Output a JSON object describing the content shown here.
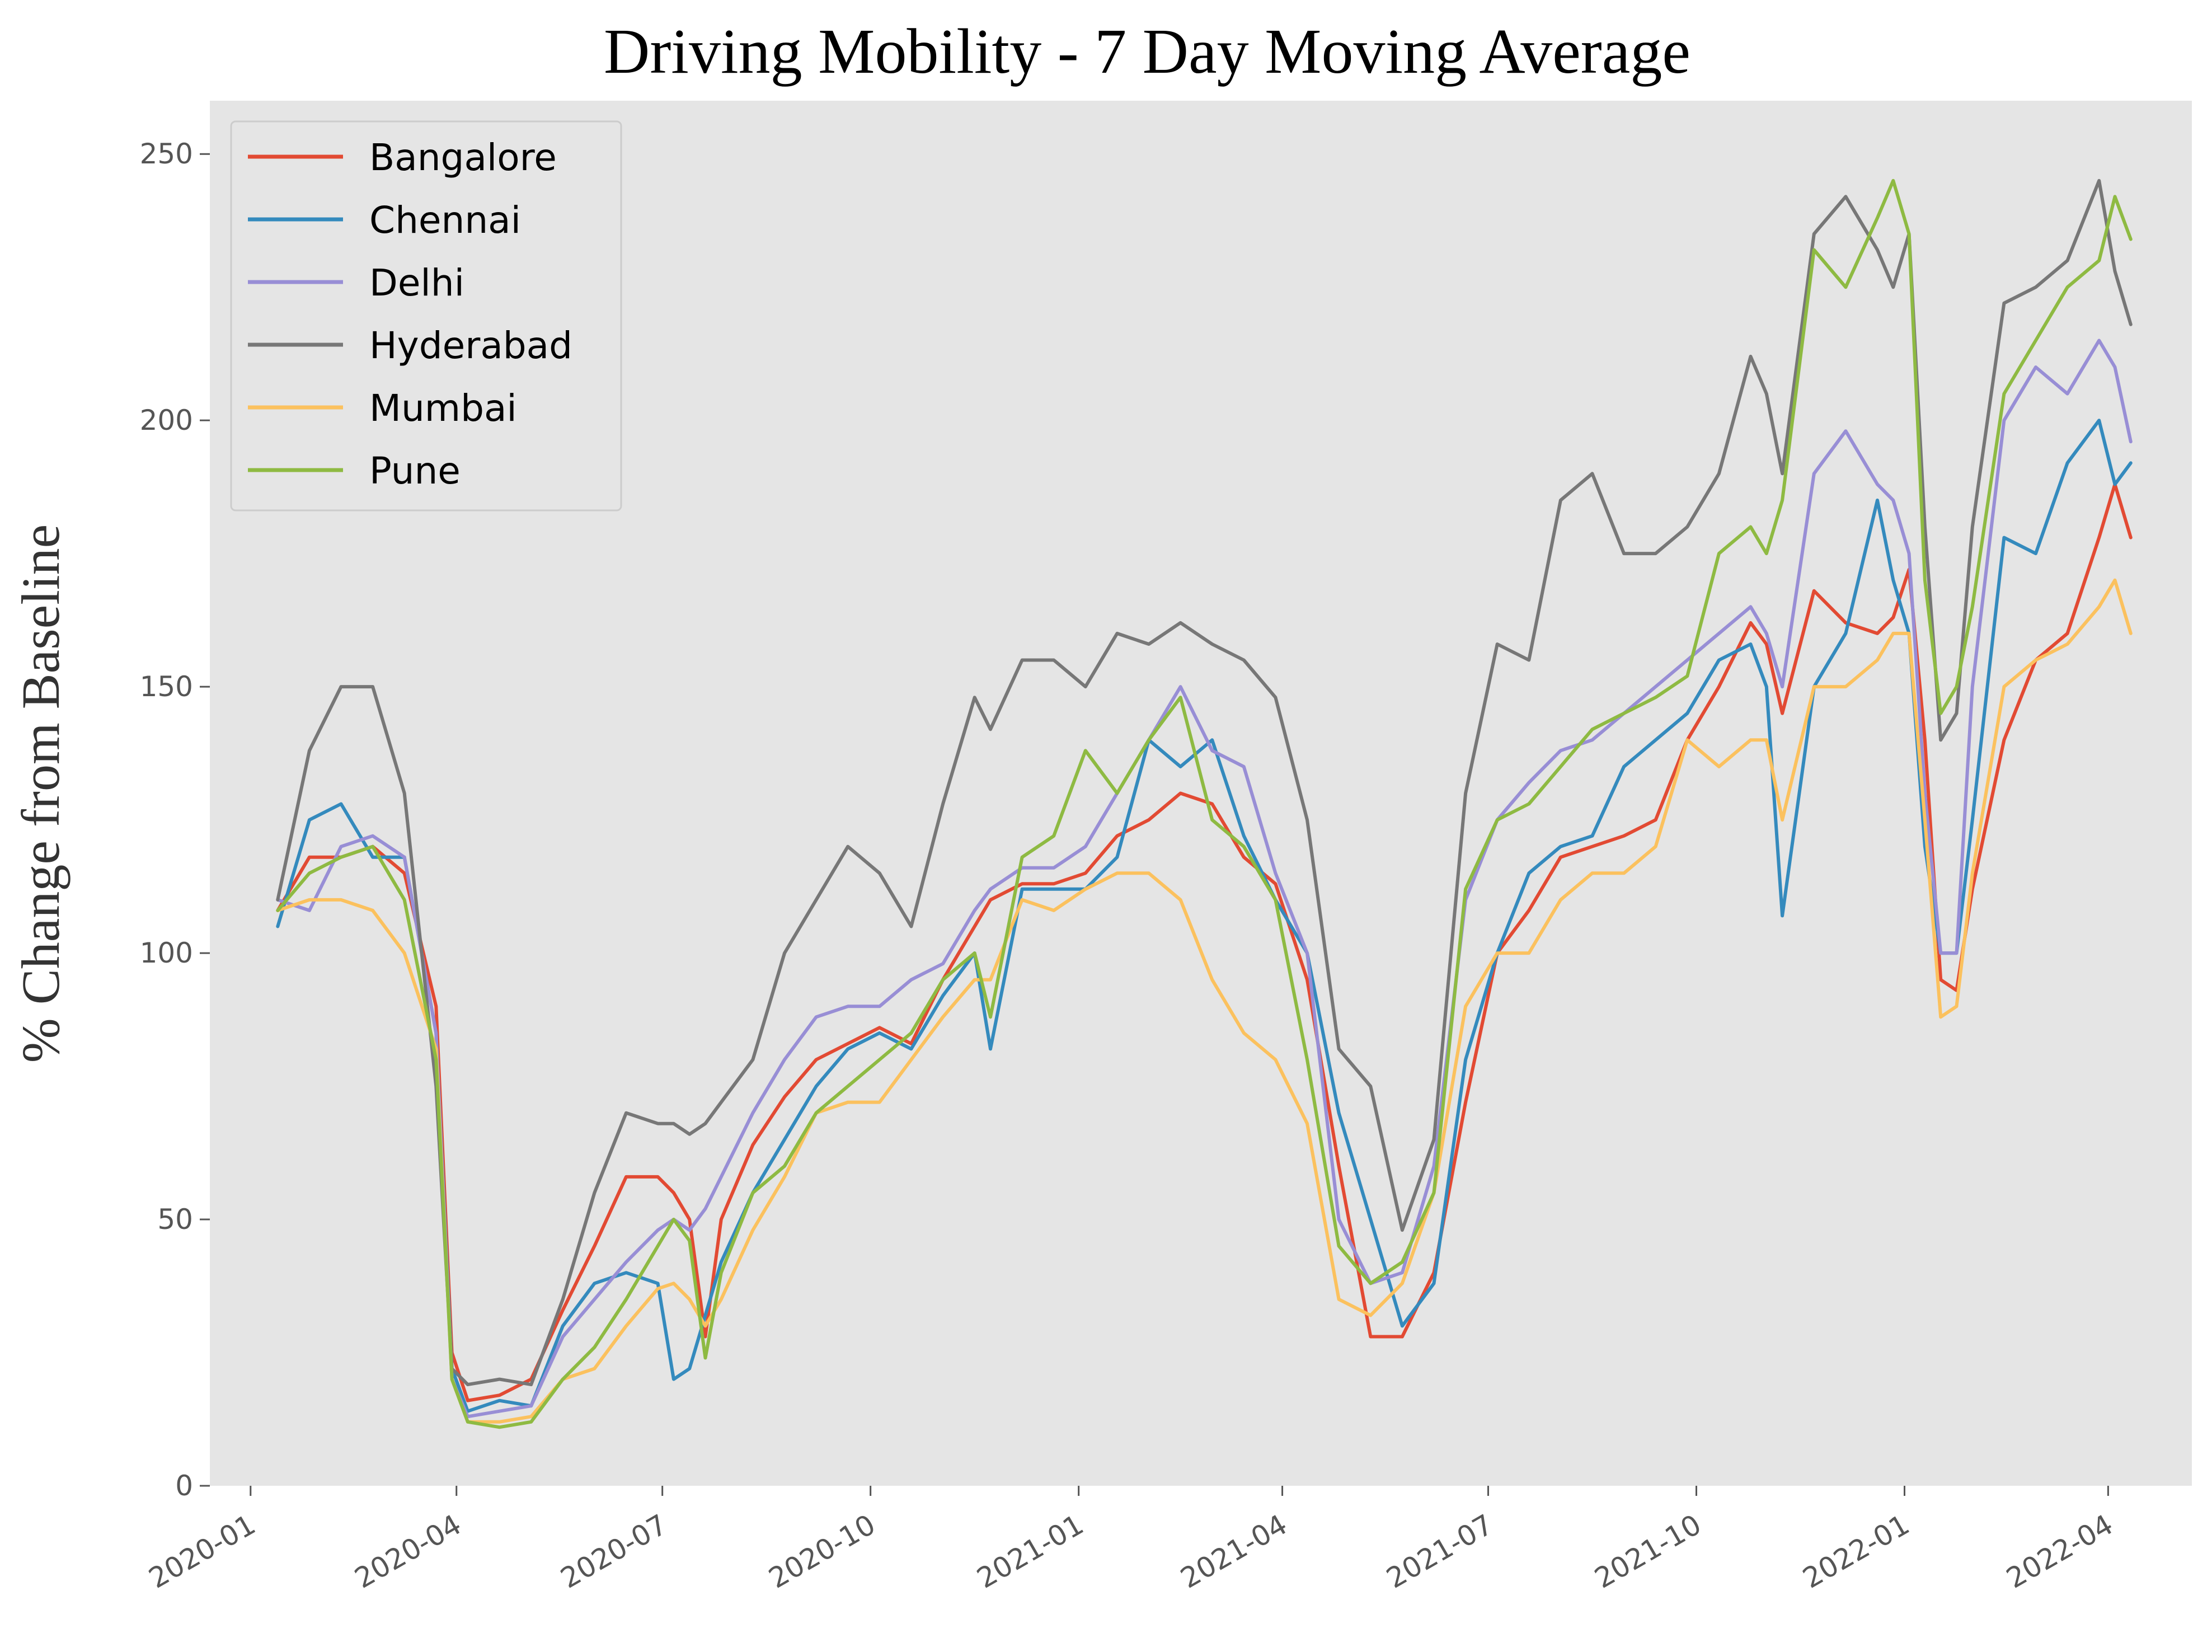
{
  "chart_data": {
    "type": "line",
    "title": "Driving Mobility - 7 Day Moving Average",
    "xlabel": "",
    "ylabel": "% Change from Baseline",
    "ylim": [
      0,
      260
    ],
    "xlim": [
      "2019-12-14",
      "2022-05-08"
    ],
    "grid": false,
    "legend": "top-left",
    "background": "#e5e5e5",
    "yticks": [
      0,
      50,
      100,
      150,
      200,
      250
    ],
    "xticks": [
      "2020-01",
      "2020-04",
      "2020-07",
      "2020-10",
      "2021-01",
      "2021-04",
      "2021-07",
      "2021-10",
      "2022-01",
      "2022-04"
    ],
    "dates": [
      "2020-01-13",
      "2020-01-27",
      "2020-02-10",
      "2020-02-24",
      "2020-03-09",
      "2020-03-23",
      "2020-03-30",
      "2020-04-06",
      "2020-04-20",
      "2020-05-04",
      "2020-05-18",
      "2020-06-01",
      "2020-06-15",
      "2020-06-29",
      "2020-07-06",
      "2020-07-13",
      "2020-07-20",
      "2020-07-27",
      "2020-08-10",
      "2020-08-24",
      "2020-09-07",
      "2020-09-21",
      "2020-10-05",
      "2020-10-19",
      "2020-11-02",
      "2020-11-16",
      "2020-11-23",
      "2020-12-07",
      "2020-12-21",
      "2021-01-04",
      "2021-01-18",
      "2021-02-01",
      "2021-02-15",
      "2021-03-01",
      "2021-03-15",
      "2021-03-29",
      "2021-04-12",
      "2021-04-26",
      "2021-05-10",
      "2021-05-24",
      "2021-06-07",
      "2021-06-21",
      "2021-07-05",
      "2021-07-19",
      "2021-08-02",
      "2021-08-16",
      "2021-08-30",
      "2021-09-13",
      "2021-09-27",
      "2021-10-11",
      "2021-10-25",
      "2021-11-01",
      "2021-11-08",
      "2021-11-22",
      "2021-12-06",
      "2021-12-20",
      "2021-12-27",
      "2022-01-03",
      "2022-01-10",
      "2022-01-17",
      "2022-01-24",
      "2022-01-31",
      "2022-02-14",
      "2022-02-28",
      "2022-03-14",
      "2022-03-28",
      "2022-04-04",
      "2022-04-11"
    ],
    "series": [
      {
        "name": "Bangalore",
        "color": "#E24A33",
        "values": [
          108,
          118,
          118,
          120,
          115,
          90,
          25,
          16,
          17,
          20,
          33,
          45,
          58,
          58,
          55,
          50,
          28,
          50,
          64,
          73,
          80,
          83,
          86,
          83,
          95,
          105,
          110,
          113,
          113,
          115,
          122,
          125,
          130,
          128,
          118,
          113,
          95,
          60,
          28,
          28,
          40,
          72,
          100,
          108,
          118,
          120,
          122,
          125,
          140,
          150,
          162,
          158,
          145,
          168,
          162,
          160,
          163,
          172,
          140,
          95,
          93,
          112,
          140,
          155,
          160,
          178,
          188,
          178
        ]
      },
      {
        "name": "Chennai",
        "color": "#348ABD",
        "values": [
          105,
          125,
          128,
          118,
          118,
          85,
          22,
          14,
          16,
          15,
          30,
          38,
          40,
          38,
          20,
          22,
          32,
          42,
          55,
          65,
          75,
          82,
          85,
          82,
          92,
          100,
          82,
          112,
          112,
          112,
          118,
          140,
          135,
          140,
          122,
          110,
          100,
          70,
          50,
          30,
          38,
          80,
          100,
          115,
          120,
          122,
          135,
          140,
          145,
          155,
          158,
          150,
          107,
          150,
          160,
          185,
          170,
          160,
          120,
          100,
          100,
          125,
          178,
          175,
          192,
          200,
          188,
          192
        ]
      },
      {
        "name": "Delhi",
        "color": "#988ED5",
        "values": [
          110,
          108,
          120,
          122,
          118,
          85,
          20,
          13,
          14,
          15,
          28,
          35,
          42,
          48,
          50,
          48,
          52,
          58,
          70,
          80,
          88,
          90,
          90,
          95,
          98,
          108,
          112,
          116,
          116,
          120,
          130,
          140,
          150,
          138,
          135,
          115,
          100,
          50,
          38,
          40,
          60,
          110,
          125,
          132,
          138,
          140,
          145,
          150,
          155,
          160,
          165,
          160,
          150,
          190,
          198,
          188,
          185,
          175,
          130,
          100,
          100,
          150,
          200,
          210,
          205,
          215,
          210,
          196
        ]
      },
      {
        "name": "Hyderabad",
        "color": "#777777",
        "values": [
          110,
          138,
          150,
          150,
          130,
          75,
          22,
          19,
          20,
          19,
          35,
          55,
          70,
          68,
          68,
          66,
          68,
          72,
          80,
          100,
          110,
          120,
          115,
          105,
          128,
          148,
          142,
          155,
          155,
          150,
          160,
          158,
          162,
          158,
          155,
          148,
          125,
          82,
          75,
          48,
          65,
          130,
          158,
          155,
          185,
          190,
          175,
          175,
          180,
          190,
          212,
          205,
          190,
          235,
          242,
          232,
          225,
          235,
          180,
          140,
          145,
          180,
          222,
          225,
          230,
          245,
          228,
          218
        ]
      },
      {
        "name": "Mumbai",
        "color": "#FBC15E",
        "values": [
          108,
          110,
          110,
          108,
          100,
          82,
          20,
          12,
          12,
          13,
          20,
          22,
          30,
          37,
          38,
          35,
          30,
          35,
          48,
          58,
          70,
          72,
          72,
          80,
          88,
          95,
          95,
          110,
          108,
          112,
          115,
          115,
          110,
          95,
          85,
          80,
          68,
          35,
          32,
          38,
          55,
          90,
          100,
          100,
          110,
          115,
          115,
          120,
          140,
          135,
          140,
          140,
          125,
          150,
          150,
          155,
          160,
          160,
          125,
          88,
          90,
          115,
          150,
          155,
          158,
          165,
          170,
          160
        ]
      },
      {
        "name": "Pune",
        "color": "#8EBA42",
        "values": [
          108,
          115,
          118,
          120,
          110,
          80,
          20,
          12,
          11,
          12,
          20,
          26,
          35,
          45,
          50,
          46,
          24,
          40,
          55,
          60,
          70,
          75,
          80,
          85,
          95,
          100,
          88,
          118,
          122,
          138,
          130,
          140,
          148,
          125,
          120,
          110,
          80,
          45,
          38,
          42,
          55,
          112,
          125,
          128,
          135,
          142,
          145,
          148,
          152,
          175,
          180,
          175,
          185,
          232,
          225,
          238,
          245,
          235,
          170,
          145,
          150,
          165,
          205,
          215,
          225,
          230,
          242,
          234
        ]
      }
    ]
  }
}
